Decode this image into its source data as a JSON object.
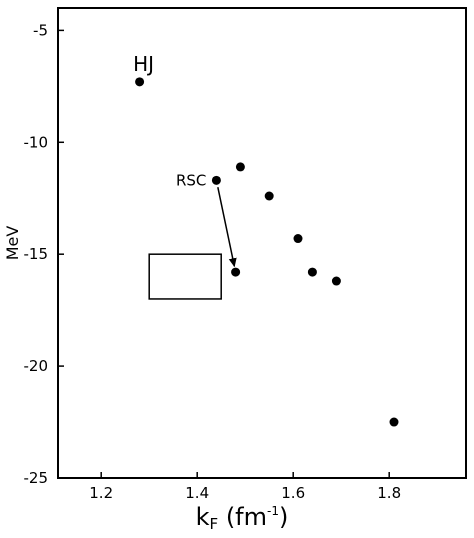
{
  "chart_data": {
    "type": "scatter",
    "title": "",
    "xlabel_main": "k",
    "xlabel_sub": "F",
    "xlabel_unit_prefix": " (fm",
    "xlabel_unit_sup": "-1",
    "xlabel_unit_suffix": ")",
    "ylabel": "MeV",
    "xlim": [
      1.11,
      1.96
    ],
    "ylim": [
      -25,
      -4
    ],
    "xticks": [
      1.2,
      1.4,
      1.6,
      1.8
    ],
    "xtick_labels": [
      "1.2",
      "1.4",
      "1.6",
      "1.8"
    ],
    "yticks": [
      -5,
      -10,
      -15,
      -20,
      -25
    ],
    "ytick_labels": [
      "-5",
      "-10",
      "-15",
      "-20",
      "-25"
    ],
    "grid": false,
    "points": [
      {
        "x": 1.28,
        "y": -7.3
      },
      {
        "x": 1.44,
        "y": -11.7
      },
      {
        "x": 1.49,
        "y": -11.1
      },
      {
        "x": 1.55,
        "y": -12.4
      },
      {
        "x": 1.61,
        "y": -14.3
      },
      {
        "x": 1.48,
        "y": -15.8
      },
      {
        "x": 1.64,
        "y": -15.8
      },
      {
        "x": 1.69,
        "y": -16.2
      },
      {
        "x": 1.81,
        "y": -22.5
      }
    ],
    "annotations": [
      {
        "text": "HJ",
        "x": 1.28,
        "y": -7.3
      },
      {
        "text": "RSC",
        "x": 1.44,
        "y": -11.7
      }
    ],
    "arrow": {
      "from": {
        "x": 1.44,
        "y": -11.7
      },
      "to": {
        "x": 1.48,
        "y": -15.8
      }
    },
    "region_box": {
      "x0": 1.3,
      "x1": 1.45,
      "y0": -17,
      "y1": -15
    }
  }
}
